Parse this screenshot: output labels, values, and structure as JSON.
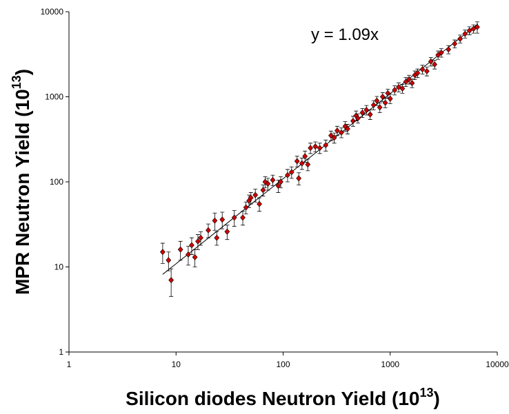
{
  "chart_data": {
    "type": "scatter",
    "x_label_parts": [
      "Silicon diodes Neutron Yield (10",
      "13",
      ")"
    ],
    "y_label_parts": [
      "MPR Neutron Yield (10",
      "13",
      ")"
    ],
    "annotation": "y = 1.09x",
    "fit_line": {
      "slope": 1.09,
      "x": [
        7.5,
        6600
      ]
    },
    "xlog": true,
    "ylog": true,
    "xlim": [
      1,
      10000
    ],
    "ylim": [
      1,
      10000
    ],
    "xticks": [
      1,
      10,
      100,
      1000,
      10000
    ],
    "yticks": [
      1,
      10,
      100,
      1000,
      10000
    ],
    "series": [
      {
        "color": "#d00000",
        "x": [
          7.5,
          8.5,
          9,
          11,
          13,
          14,
          15,
          16,
          17,
          20,
          23,
          24,
          27,
          30,
          35,
          42,
          45,
          48,
          50,
          55,
          60,
          65,
          68,
          72,
          80,
          90,
          95,
          110,
          120,
          135,
          140,
          150,
          160,
          170,
          180,
          200,
          220,
          250,
          280,
          300,
          320,
          350,
          380,
          400,
          450,
          480,
          500,
          550,
          600,
          650,
          700,
          750,
          800,
          850,
          900,
          950,
          1000,
          1100,
          1200,
          1300,
          1400,
          1500,
          1600,
          1700,
          1800,
          2000,
          2200,
          2400,
          2600,
          2800,
          3000,
          3500,
          4000,
          4500,
          5000,
          5500,
          6000,
          6500
        ],
        "values": [
          15,
          12,
          7,
          16,
          14,
          18,
          13,
          20,
          22,
          27,
          35,
          22,
          36,
          26,
          38,
          38,
          50,
          60,
          65,
          70,
          55,
          80,
          100,
          95,
          105,
          90,
          100,
          120,
          130,
          175,
          110,
          165,
          200,
          160,
          250,
          260,
          250,
          270,
          350,
          330,
          400,
          380,
          450,
          420,
          520,
          600,
          560,
          650,
          700,
          620,
          800,
          900,
          750,
          1000,
          850,
          1100,
          950,
          1200,
          1300,
          1250,
          1500,
          1600,
          1450,
          1800,
          1900,
          2100,
          2000,
          2600,
          2400,
          3100,
          3300,
          3600,
          4200,
          4800,
          5500,
          6000,
          6300,
          6600
        ],
        "errors": [
          4,
          3,
          2.5,
          4,
          3.5,
          4,
          3,
          4,
          4,
          5,
          8,
          4,
          8,
          5,
          8,
          7,
          8,
          10,
          10,
          12,
          10,
          12,
          15,
          15,
          15,
          15,
          15,
          20,
          20,
          25,
          18,
          25,
          30,
          25,
          35,
          35,
          35,
          40,
          45,
          45,
          50,
          50,
          60,
          55,
          70,
          80,
          70,
          80,
          90,
          80,
          100,
          110,
          100,
          120,
          110,
          130,
          120,
          150,
          160,
          150,
          180,
          190,
          170,
          210,
          220,
          250,
          240,
          300,
          280,
          350,
          380,
          400,
          450,
          520,
          600,
          650,
          700,
          1000
        ]
      }
    ]
  }
}
